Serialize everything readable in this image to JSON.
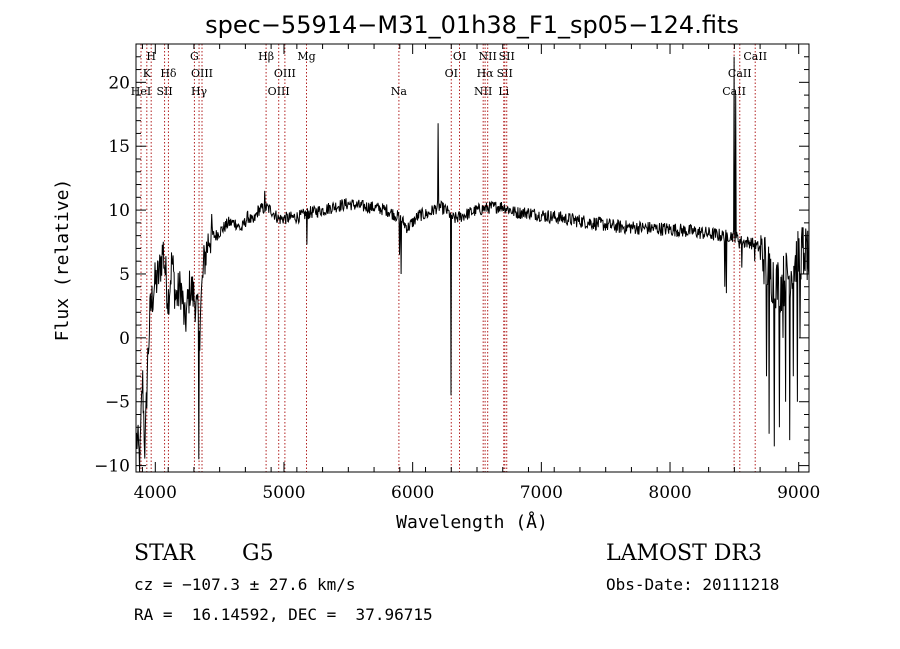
{
  "chart_data": {
    "type": "line",
    "title": "spec−55914−M31_01h38_F1_sp05−124.fits",
    "xlabel": "Wavelength (Å)",
    "ylabel": "Flux (relative)",
    "xlim": [
      3850,
      9080
    ],
    "ylim": [
      -10.5,
      23
    ],
    "x_ticks": [
      4000,
      5000,
      6000,
      7000,
      8000,
      9000
    ],
    "y_ticks": [
      -10,
      -5,
      0,
      5,
      10,
      15,
      20
    ],
    "y_tick_labels": [
      "−10",
      "−5",
      "0",
      "5",
      "10",
      "15",
      "20"
    ],
    "line_color": "#000000",
    "marker_color": "#b22222",
    "spectrum_anchors": [
      [
        3860,
        -8
      ],
      [
        3880,
        -10
      ],
      [
        3900,
        -3
      ],
      [
        3920,
        -9
      ],
      [
        3940,
        -2
      ],
      [
        3960,
        2
      ],
      [
        3990,
        4
      ],
      [
        4030,
        5
      ],
      [
        4060,
        7
      ],
      [
        4100,
        3
      ],
      [
        4130,
        6
      ],
      [
        4160,
        3
      ],
      [
        4200,
        4
      ],
      [
        4230,
        1
      ],
      [
        4270,
        4
      ],
      [
        4310,
        3
      ],
      [
        4340,
        1
      ],
      [
        4380,
        6
      ],
      [
        4420,
        8
      ],
      [
        4470,
        8
      ],
      [
        4520,
        8.5
      ],
      [
        4570,
        9
      ],
      [
        4620,
        9
      ],
      [
        4670,
        8.5
      ],
      [
        4720,
        9.5
      ],
      [
        4760,
        9
      ],
      [
        4800,
        10
      ],
      [
        4860,
        10.2
      ],
      [
        4900,
        10
      ],
      [
        4960,
        9.3
      ],
      [
        5050,
        9.4
      ],
      [
        5120,
        9.5
      ],
      [
        5200,
        9.8
      ],
      [
        5300,
        10
      ],
      [
        5400,
        10.3
      ],
      [
        5500,
        10.5
      ],
      [
        5600,
        10.3
      ],
      [
        5700,
        10.2
      ],
      [
        5800,
        10
      ],
      [
        5900,
        9.4
      ],
      [
        5960,
        8.6
      ],
      [
        6050,
        9.6
      ],
      [
        6120,
        9.7
      ],
      [
        6200,
        10.3
      ],
      [
        6260,
        10
      ],
      [
        6320,
        9.3
      ],
      [
        6400,
        9.6
      ],
      [
        6500,
        10
      ],
      [
        6600,
        10.2
      ],
      [
        6700,
        10.3
      ],
      [
        6800,
        9.8
      ],
      [
        6900,
        9.8
      ],
      [
        7000,
        9.6
      ],
      [
        7200,
        9.3
      ],
      [
        7400,
        9
      ],
      [
        7600,
        8.7
      ],
      [
        7800,
        8.6
      ],
      [
        8000,
        8.5
      ],
      [
        8200,
        8.3
      ],
      [
        8400,
        8
      ],
      [
        8500,
        8
      ],
      [
        8560,
        7.5
      ],
      [
        8620,
        7.5
      ],
      [
        8700,
        7
      ],
      [
        8780,
        5
      ],
      [
        8850,
        4
      ],
      [
        8920,
        5
      ],
      [
        8980,
        6
      ],
      [
        9040,
        7
      ],
      [
        9080,
        6
      ]
    ],
    "spectrum_features": [
      [
        6200,
        16.8
      ],
      [
        6210,
        10.5
      ],
      [
        6300,
        -4.5
      ],
      [
        5900,
        6.5
      ],
      [
        5910,
        5
      ],
      [
        4340,
        -9.5
      ],
      [
        4345,
        -1
      ],
      [
        4850,
        11.5
      ],
      [
        5180,
        7.3
      ],
      [
        8425,
        4
      ],
      [
        8440,
        3.5
      ],
      [
        8500,
        22
      ],
      [
        8510,
        19
      ],
      [
        8540,
        7
      ],
      [
        8560,
        5.5
      ],
      [
        8660,
        6
      ],
      [
        8690,
        7
      ],
      [
        8750,
        -3
      ],
      [
        8770,
        -7.5
      ],
      [
        8810,
        -8.5
      ],
      [
        8850,
        -7
      ],
      [
        8880,
        0
      ],
      [
        8900,
        -5
      ],
      [
        8930,
        -8
      ],
      [
        8960,
        -3
      ],
      [
        8990,
        -5
      ],
      [
        9010,
        0
      ],
      [
        9040,
        5
      ]
    ],
    "spectral_lines": [
      {
        "x": 3889,
        "label": "HeI",
        "row": 3
      },
      {
        "x": 3934,
        "label": "K",
        "row": 2
      },
      {
        "x": 3968,
        "label": "H",
        "row": 1
      },
      {
        "x": 4072,
        "label": "SII",
        "row": 3
      },
      {
        "x": 4102,
        "label": "Hδ",
        "row": 2
      },
      {
        "x": 4304,
        "label": "G",
        "row": 1
      },
      {
        "x": 4340,
        "label": "Hγ",
        "row": 3
      },
      {
        "x": 4363,
        "label": "OIII",
        "row": 2
      },
      {
        "x": 4861,
        "label": "Hβ",
        "row": 1
      },
      {
        "x": 4959,
        "label": "OIII",
        "row": 3
      },
      {
        "x": 5007,
        "label": "OIII",
        "row": 2
      },
      {
        "x": 5175,
        "label": "Mg",
        "row": 1
      },
      {
        "x": 5893,
        "label": "Na",
        "row": 3
      },
      {
        "x": 6300,
        "label": "OI",
        "row": 2
      },
      {
        "x": 6364,
        "label": "OI",
        "row": 1
      },
      {
        "x": 6548,
        "label": "NII",
        "row": 3
      },
      {
        "x": 6563,
        "label": "Hα",
        "row": 2
      },
      {
        "x": 6583,
        "label": "NII",
        "row": 1
      },
      {
        "x": 6708,
        "label": "Li",
        "row": 3
      },
      {
        "x": 6716,
        "label": "SII",
        "row": 2
      },
      {
        "x": 6731,
        "label": "SII",
        "row": 1
      },
      {
        "x": 8498,
        "label": "CaII",
        "row": 3
      },
      {
        "x": 8542,
        "label": "CaII",
        "row": 2
      },
      {
        "x": 8662,
        "label": "CaII",
        "row": 1
      }
    ]
  },
  "info": {
    "class": "STAR",
    "subclass": "G5",
    "survey": "LAMOST DR3",
    "cz": "cz = −107.3 ± 27.6 km/s",
    "obs_date": "Obs-Date: 20111218",
    "coords": "RA =  16.14592, DEC =  37.96715"
  }
}
